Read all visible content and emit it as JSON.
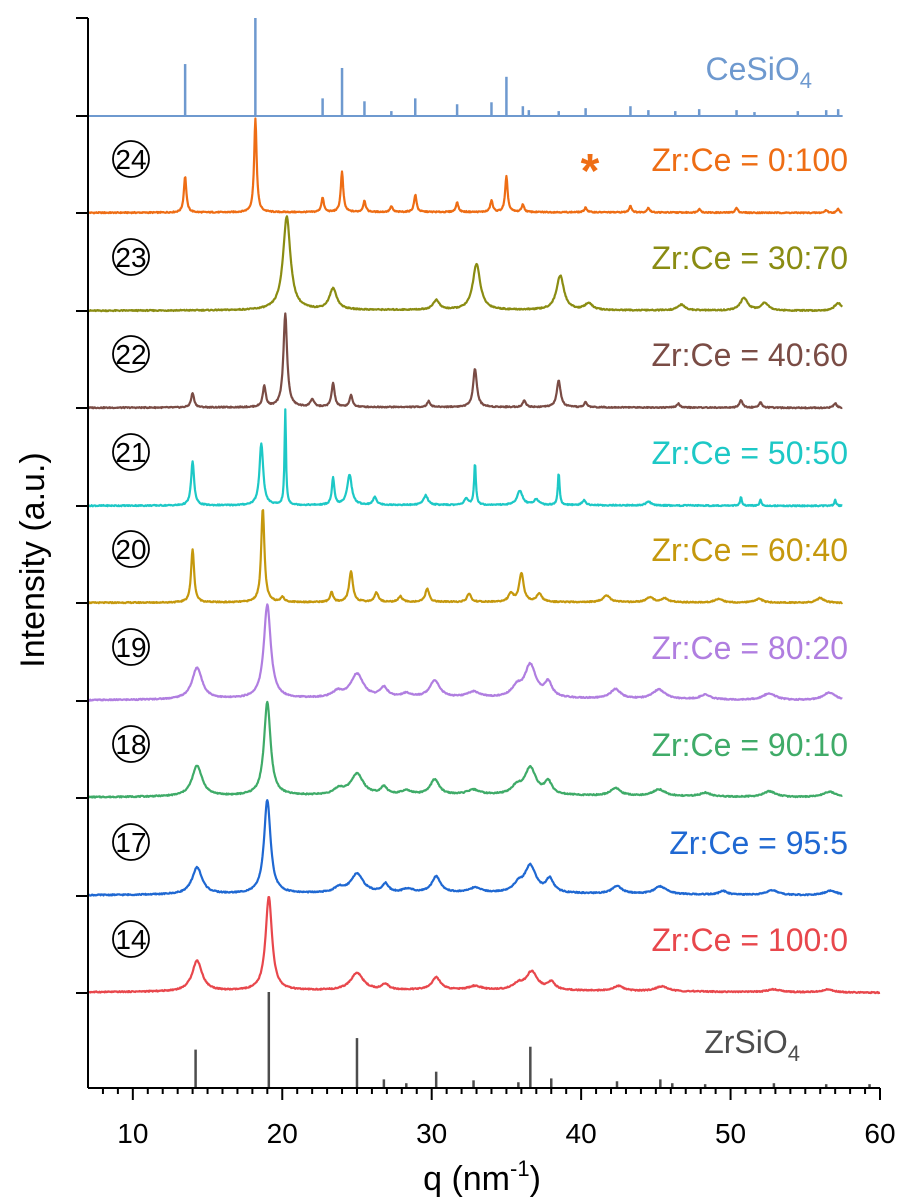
{
  "chart_data": {
    "type": "line",
    "xlabel": "q (nm",
    "xlabel_sup": "-1",
    "xlabel_close": ")",
    "ylabel": "Intensity (a.u.)",
    "xlim": [
      7,
      60
    ],
    "x_ticks": [
      10,
      20,
      30,
      40,
      50,
      60
    ],
    "reference_patterns": [
      {
        "label": "CeSiO",
        "subscript": "4",
        "color": "#6e99cf",
        "position": "top",
        "sticks": [
          {
            "q": 13.5,
            "h": 0.53
          },
          {
            "q": 18.2,
            "h": 1.0
          },
          {
            "q": 22.7,
            "h": 0.18
          },
          {
            "q": 24.0,
            "h": 0.49
          },
          {
            "q": 25.5,
            "h": 0.15
          },
          {
            "q": 27.3,
            "h": 0.05
          },
          {
            "q": 28.9,
            "h": 0.18
          },
          {
            "q": 31.7,
            "h": 0.12
          },
          {
            "q": 34.0,
            "h": 0.14
          },
          {
            "q": 35.0,
            "h": 0.4
          },
          {
            "q": 36.1,
            "h": 0.1
          },
          {
            "q": 36.5,
            "h": 0.06
          },
          {
            "q": 38.5,
            "h": 0.05
          },
          {
            "q": 40.3,
            "h": 0.08
          },
          {
            "q": 43.3,
            "h": 0.1
          },
          {
            "q": 44.5,
            "h": 0.06
          },
          {
            "q": 46.3,
            "h": 0.05
          },
          {
            "q": 47.9,
            "h": 0.07
          },
          {
            "q": 50.4,
            "h": 0.06
          },
          {
            "q": 51.6,
            "h": 0.04
          },
          {
            "q": 54.5,
            "h": 0.05
          },
          {
            "q": 56.4,
            "h": 0.06
          },
          {
            "q": 57.2,
            "h": 0.07
          }
        ]
      },
      {
        "label": "ZrSiO",
        "subscript": "4",
        "color": "#4d4d4d",
        "position": "bottom",
        "sticks": [
          {
            "q": 14.2,
            "h": 0.4
          },
          {
            "q": 19.1,
            "h": 1.0
          },
          {
            "q": 25.0,
            "h": 0.52
          },
          {
            "q": 26.8,
            "h": 0.09
          },
          {
            "q": 28.3,
            "h": 0.05
          },
          {
            "q": 30.3,
            "h": 0.17
          },
          {
            "q": 32.8,
            "h": 0.08
          },
          {
            "q": 35.8,
            "h": 0.06
          },
          {
            "q": 36.6,
            "h": 0.43
          },
          {
            "q": 38.0,
            "h": 0.1
          },
          {
            "q": 42.4,
            "h": 0.07
          },
          {
            "q": 45.3,
            "h": 0.09
          },
          {
            "q": 46.1,
            "h": 0.05
          },
          {
            "q": 48.3,
            "h": 0.04
          },
          {
            "q": 52.9,
            "h": 0.05
          },
          {
            "q": 56.4,
            "h": 0.04
          },
          {
            "q": 59.3,
            "h": 0.04
          }
        ]
      }
    ],
    "series": [
      {
        "name": "Zr:Ce = 0:100",
        "sample_id": "24",
        "marker": "*",
        "color": "#ee6d14",
        "x_end": 57.5,
        "peaks": [
          {
            "q": 13.5,
            "h": 0.38,
            "w": 0.1
          },
          {
            "q": 18.2,
            "h": 0.98,
            "w": 0.1
          },
          {
            "q": 22.7,
            "h": 0.15,
            "w": 0.1
          },
          {
            "q": 24.0,
            "h": 0.42,
            "w": 0.1
          },
          {
            "q": 25.5,
            "h": 0.12,
            "w": 0.1
          },
          {
            "q": 27.3,
            "h": 0.06,
            "w": 0.1
          },
          {
            "q": 28.9,
            "h": 0.18,
            "w": 0.1
          },
          {
            "q": 31.7,
            "h": 0.1,
            "w": 0.1
          },
          {
            "q": 34.0,
            "h": 0.12,
            "w": 0.1
          },
          {
            "q": 35.0,
            "h": 0.37,
            "w": 0.1
          },
          {
            "q": 36.1,
            "h": 0.08,
            "w": 0.1
          },
          {
            "q": 40.3,
            "h": 0.05,
            "w": 0.1
          },
          {
            "q": 43.3,
            "h": 0.07,
            "w": 0.1
          },
          {
            "q": 44.5,
            "h": 0.05,
            "w": 0.1
          },
          {
            "q": 47.9,
            "h": 0.04,
            "w": 0.1
          },
          {
            "q": 50.4,
            "h": 0.05,
            "w": 0.1
          },
          {
            "q": 56.4,
            "h": 0.03,
            "w": 0.1
          },
          {
            "q": 57.2,
            "h": 0.04,
            "w": 0.1
          }
        ]
      },
      {
        "name": "Zr:Ce = 30:70",
        "sample_id": "23",
        "color": "#8a8c12",
        "x_end": 57.5,
        "peaks": [
          {
            "q": 20.3,
            "h": 0.98,
            "w": 0.3
          },
          {
            "q": 23.4,
            "h": 0.22,
            "w": 0.3
          },
          {
            "q": 30.3,
            "h": 0.1,
            "w": 0.25
          },
          {
            "q": 33.0,
            "h": 0.48,
            "w": 0.3
          },
          {
            "q": 38.6,
            "h": 0.36,
            "w": 0.3
          },
          {
            "q": 40.5,
            "h": 0.07,
            "w": 0.3
          },
          {
            "q": 46.7,
            "h": 0.06,
            "w": 0.3
          },
          {
            "q": 50.9,
            "h": 0.13,
            "w": 0.3
          },
          {
            "q": 52.3,
            "h": 0.08,
            "w": 0.3
          },
          {
            "q": 57.2,
            "h": 0.08,
            "w": 0.3
          }
        ]
      },
      {
        "name": "Zr:Ce = 40:60",
        "sample_id": "22",
        "color": "#7a4c45",
        "x_end": 57.5,
        "peaks": [
          {
            "q": 14.0,
            "h": 0.15,
            "w": 0.12
          },
          {
            "q": 18.8,
            "h": 0.22,
            "w": 0.12
          },
          {
            "q": 20.2,
            "h": 0.98,
            "w": 0.15
          },
          {
            "q": 22.0,
            "h": 0.08,
            "w": 0.15
          },
          {
            "q": 23.4,
            "h": 0.25,
            "w": 0.12
          },
          {
            "q": 24.6,
            "h": 0.12,
            "w": 0.12
          },
          {
            "q": 29.8,
            "h": 0.06,
            "w": 0.12
          },
          {
            "q": 32.9,
            "h": 0.4,
            "w": 0.15
          },
          {
            "q": 36.2,
            "h": 0.07,
            "w": 0.12
          },
          {
            "q": 38.5,
            "h": 0.28,
            "w": 0.15
          },
          {
            "q": 40.3,
            "h": 0.05,
            "w": 0.12
          },
          {
            "q": 46.5,
            "h": 0.04,
            "w": 0.12
          },
          {
            "q": 50.7,
            "h": 0.08,
            "w": 0.12
          },
          {
            "q": 52.0,
            "h": 0.06,
            "w": 0.12
          },
          {
            "q": 57.0,
            "h": 0.05,
            "w": 0.12
          }
        ]
      },
      {
        "name": "Zr:Ce = 50:50",
        "sample_id": "21",
        "color": "#1dc8c6",
        "x_end": 57.5,
        "peaks": [
          {
            "q": 14.0,
            "h": 0.46,
            "w": 0.12
          },
          {
            "q": 18.6,
            "h": 0.65,
            "w": 0.15
          },
          {
            "q": 20.2,
            "h": 1.0,
            "w": 0.06
          },
          {
            "q": 23.4,
            "h": 0.28,
            "w": 0.1
          },
          {
            "q": 24.5,
            "h": 0.32,
            "w": 0.18
          },
          {
            "q": 26.2,
            "h": 0.08,
            "w": 0.15
          },
          {
            "q": 29.6,
            "h": 0.1,
            "w": 0.18
          },
          {
            "q": 32.3,
            "h": 0.07,
            "w": 0.15
          },
          {
            "q": 32.9,
            "h": 0.44,
            "w": 0.07
          },
          {
            "q": 35.9,
            "h": 0.15,
            "w": 0.22
          },
          {
            "q": 37.0,
            "h": 0.06,
            "w": 0.2
          },
          {
            "q": 38.5,
            "h": 0.34,
            "w": 0.07
          },
          {
            "q": 40.2,
            "h": 0.05,
            "w": 0.15
          },
          {
            "q": 44.5,
            "h": 0.04,
            "w": 0.2
          },
          {
            "q": 50.7,
            "h": 0.09,
            "w": 0.07
          },
          {
            "q": 52.0,
            "h": 0.06,
            "w": 0.07
          },
          {
            "q": 57.0,
            "h": 0.06,
            "w": 0.07
          }
        ]
      },
      {
        "name": "Zr:Ce = 60:40",
        "sample_id": "20",
        "color": "#c5980d",
        "x_end": 57.5,
        "peaks": [
          {
            "q": 14.0,
            "h": 0.56,
            "w": 0.12
          },
          {
            "q": 18.7,
            "h": 0.98,
            "w": 0.13
          },
          {
            "q": 20.0,
            "h": 0.05,
            "w": 0.15
          },
          {
            "q": 23.3,
            "h": 0.1,
            "w": 0.12
          },
          {
            "q": 24.6,
            "h": 0.32,
            "w": 0.15
          },
          {
            "q": 26.3,
            "h": 0.1,
            "w": 0.15
          },
          {
            "q": 27.9,
            "h": 0.06,
            "w": 0.15
          },
          {
            "q": 29.7,
            "h": 0.14,
            "w": 0.15
          },
          {
            "q": 32.5,
            "h": 0.09,
            "w": 0.15
          },
          {
            "q": 35.3,
            "h": 0.08,
            "w": 0.2
          },
          {
            "q": 36.0,
            "h": 0.3,
            "w": 0.18
          },
          {
            "q": 37.2,
            "h": 0.09,
            "w": 0.2
          },
          {
            "q": 41.7,
            "h": 0.07,
            "w": 0.3
          },
          {
            "q": 44.6,
            "h": 0.05,
            "w": 0.3
          },
          {
            "q": 45.6,
            "h": 0.04,
            "w": 0.3
          },
          {
            "q": 49.2,
            "h": 0.04,
            "w": 0.3
          },
          {
            "q": 51.9,
            "h": 0.04,
            "w": 0.3
          },
          {
            "q": 56.0,
            "h": 0.05,
            "w": 0.3
          }
        ]
      },
      {
        "name": "Zr:Ce = 80:20",
        "sample_id": "19",
        "color": "#b07ee0",
        "x_end": 57.5,
        "peaks": [
          {
            "q": 14.3,
            "h": 0.33,
            "w": 0.4
          },
          {
            "q": 19.0,
            "h": 0.98,
            "w": 0.28
          },
          {
            "q": 23.7,
            "h": 0.06,
            "w": 0.4
          },
          {
            "q": 25.0,
            "h": 0.25,
            "w": 0.5
          },
          {
            "q": 26.8,
            "h": 0.1,
            "w": 0.3
          },
          {
            "q": 28.3,
            "h": 0.04,
            "w": 0.4
          },
          {
            "q": 30.2,
            "h": 0.18,
            "w": 0.4
          },
          {
            "q": 32.8,
            "h": 0.06,
            "w": 0.5
          },
          {
            "q": 35.7,
            "h": 0.1,
            "w": 0.4
          },
          {
            "q": 36.6,
            "h": 0.34,
            "w": 0.45
          },
          {
            "q": 37.8,
            "h": 0.15,
            "w": 0.3
          },
          {
            "q": 42.3,
            "h": 0.1,
            "w": 0.4
          },
          {
            "q": 45.2,
            "h": 0.1,
            "w": 0.5
          },
          {
            "q": 48.3,
            "h": 0.05,
            "w": 0.4
          },
          {
            "q": 52.6,
            "h": 0.07,
            "w": 0.5
          },
          {
            "q": 56.6,
            "h": 0.08,
            "w": 0.5
          }
        ]
      },
      {
        "name": "Zr:Ce = 90:10",
        "sample_id": "18",
        "color": "#3fab68",
        "x_end": 57.5,
        "peaks": [
          {
            "q": 14.3,
            "h": 0.32,
            "w": 0.4
          },
          {
            "q": 19.0,
            "h": 0.98,
            "w": 0.26
          },
          {
            "q": 23.8,
            "h": 0.06,
            "w": 0.4
          },
          {
            "q": 25.0,
            "h": 0.22,
            "w": 0.5
          },
          {
            "q": 26.8,
            "h": 0.08,
            "w": 0.25
          },
          {
            "q": 28.3,
            "h": 0.04,
            "w": 0.4
          },
          {
            "q": 30.2,
            "h": 0.16,
            "w": 0.35
          },
          {
            "q": 32.8,
            "h": 0.05,
            "w": 0.5
          },
          {
            "q": 35.7,
            "h": 0.08,
            "w": 0.4
          },
          {
            "q": 36.6,
            "h": 0.28,
            "w": 0.45
          },
          {
            "q": 37.8,
            "h": 0.13,
            "w": 0.3
          },
          {
            "q": 42.3,
            "h": 0.08,
            "w": 0.4
          },
          {
            "q": 45.2,
            "h": 0.07,
            "w": 0.5
          },
          {
            "q": 48.3,
            "h": 0.04,
            "w": 0.4
          },
          {
            "q": 52.6,
            "h": 0.06,
            "w": 0.5
          },
          {
            "q": 56.6,
            "h": 0.06,
            "w": 0.5
          }
        ]
      },
      {
        "name": "Zr:Ce = 95:5",
        "sample_id": "17",
        "color": "#1f68d2",
        "x_end": 57.5,
        "peaks": [
          {
            "q": 14.3,
            "h": 0.28,
            "w": 0.4
          },
          {
            "q": 19.0,
            "h": 0.98,
            "w": 0.26
          },
          {
            "q": 23.8,
            "h": 0.05,
            "w": 0.4
          },
          {
            "q": 25.0,
            "h": 0.2,
            "w": 0.5
          },
          {
            "q": 26.9,
            "h": 0.09,
            "w": 0.25
          },
          {
            "q": 28.4,
            "h": 0.04,
            "w": 0.4
          },
          {
            "q": 30.3,
            "h": 0.17,
            "w": 0.35
          },
          {
            "q": 32.9,
            "h": 0.05,
            "w": 0.5
          },
          {
            "q": 35.8,
            "h": 0.08,
            "w": 0.4
          },
          {
            "q": 36.6,
            "h": 0.28,
            "w": 0.45
          },
          {
            "q": 37.9,
            "h": 0.14,
            "w": 0.3
          },
          {
            "q": 42.4,
            "h": 0.08,
            "w": 0.4
          },
          {
            "q": 45.3,
            "h": 0.08,
            "w": 0.5
          },
          {
            "q": 49.5,
            "h": 0.04,
            "w": 0.3
          },
          {
            "q": 52.8,
            "h": 0.05,
            "w": 0.5
          },
          {
            "q": 56.7,
            "h": 0.05,
            "w": 0.5
          }
        ]
      },
      {
        "name": "Zr:Ce = 100:0",
        "sample_id": "14",
        "color": "#e8474c",
        "x_end": 60.0,
        "peaks": [
          {
            "q": 14.3,
            "h": 0.32,
            "w": 0.4
          },
          {
            "q": 19.1,
            "h": 0.98,
            "w": 0.26
          },
          {
            "q": 25.0,
            "h": 0.18,
            "w": 0.5
          },
          {
            "q": 26.9,
            "h": 0.06,
            "w": 0.25
          },
          {
            "q": 30.3,
            "h": 0.13,
            "w": 0.35
          },
          {
            "q": 32.9,
            "h": 0.04,
            "w": 0.5
          },
          {
            "q": 35.8,
            "h": 0.06,
            "w": 0.4
          },
          {
            "q": 36.7,
            "h": 0.19,
            "w": 0.45
          },
          {
            "q": 38.0,
            "h": 0.08,
            "w": 0.3
          },
          {
            "q": 42.5,
            "h": 0.05,
            "w": 0.4
          },
          {
            "q": 45.4,
            "h": 0.05,
            "w": 0.5
          },
          {
            "q": 52.9,
            "h": 0.03,
            "w": 0.5
          },
          {
            "q": 56.5,
            "h": 0.03,
            "w": 0.5
          }
        ]
      }
    ]
  }
}
